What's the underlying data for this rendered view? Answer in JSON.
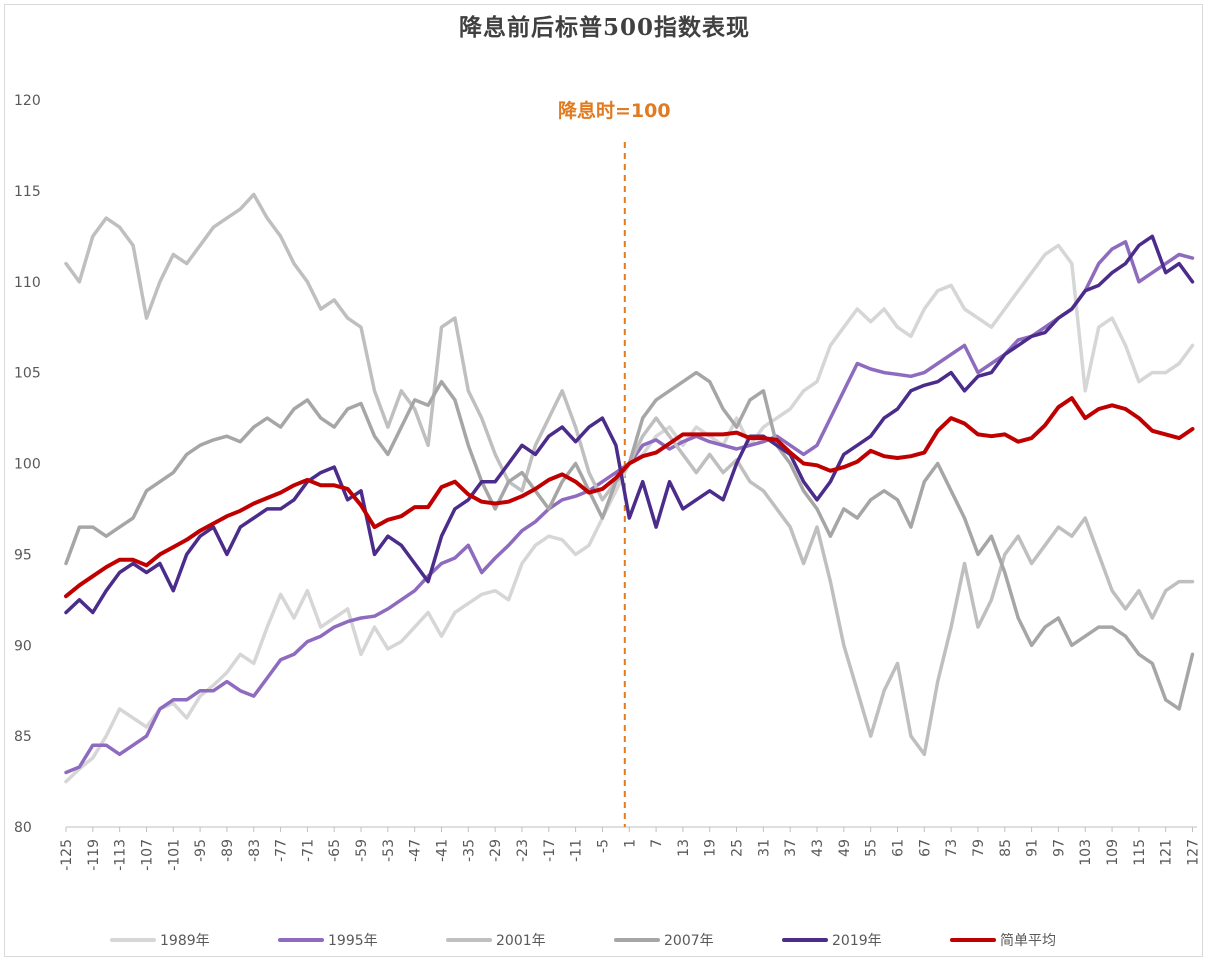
{
  "chart_data": {
    "type": "line",
    "title": "降息前后标普500指数表现",
    "annotation": "降息时=100",
    "annotation_color": "#e07b22",
    "xlabel": "",
    "ylabel": "",
    "x_range": [
      -125,
      128
    ],
    "ylim": [
      80,
      120
    ],
    "y_ticks": [
      80,
      85,
      90,
      95,
      100,
      105,
      110,
      115,
      120
    ],
    "x_tick_labels": [
      -125,
      -119,
      -113,
      -107,
      -101,
      -95,
      -89,
      -83,
      -77,
      -71,
      -65,
      -59,
      -53,
      -47,
      -41,
      -35,
      -29,
      -23,
      -17,
      -11,
      -5,
      1,
      7,
      13,
      19,
      25,
      31,
      37,
      43,
      49,
      55,
      61,
      67,
      73,
      79,
      85,
      91,
      97,
      103,
      109,
      115,
      121,
      127
    ],
    "grid": false,
    "legend_position": "bottom",
    "series": [
      {
        "name": "1989年",
        "color": "#d6d6d6",
        "width": 3.5,
        "x": [
          -125,
          -122,
          -119,
          -116,
          -113,
          -110,
          -107,
          -104,
          -101,
          -98,
          -95,
          -92,
          -89,
          -86,
          -83,
          -80,
          -77,
          -74,
          -71,
          -68,
          -65,
          -62,
          -59,
          -56,
          -53,
          -50,
          -47,
          -44,
          -41,
          -38,
          -35,
          -32,
          -29,
          -26,
          -23,
          -20,
          -17,
          -14,
          -11,
          -8,
          -5,
          -2,
          1,
          4,
          7,
          10,
          13,
          16,
          19,
          22,
          25,
          28,
          31,
          34,
          37,
          40,
          43,
          46,
          49,
          52,
          55,
          58,
          61,
          64,
          67,
          70,
          73,
          76,
          79,
          82,
          85,
          88,
          91,
          94,
          97,
          100,
          103,
          106,
          109,
          112,
          115,
          118,
          121,
          124,
          127
        ],
        "values": [
          82.5,
          83.2,
          83.8,
          85.0,
          86.5,
          86.0,
          85.5,
          86.5,
          86.8,
          86.0,
          87.2,
          87.8,
          88.5,
          89.5,
          89.0,
          91.0,
          92.8,
          91.5,
          93.0,
          91.0,
          91.5,
          92.0,
          89.5,
          91.0,
          89.8,
          90.2,
          91.0,
          91.8,
          90.5,
          91.8,
          92.3,
          92.8,
          93.0,
          92.5,
          94.5,
          95.5,
          96.0,
          95.8,
          95.0,
          95.5,
          97.0,
          98.5,
          100.0,
          100.5,
          101.5,
          102.0,
          101.0,
          102.0,
          101.5,
          101.0,
          102.5,
          101.0,
          102.0,
          102.5,
          103.0,
          104.0,
          104.5,
          106.5,
          107.5,
          108.5,
          107.8,
          108.5,
          107.5,
          107.0,
          108.5,
          109.5,
          109.8,
          108.5,
          108.0,
          107.5,
          108.5,
          109.5,
          110.5,
          111.5,
          112.0,
          111.0,
          104.0,
          107.5,
          108.0,
          106.5,
          104.5,
          105.0,
          105.0,
          105.5,
          106.5
        ]
      },
      {
        "name": "1995年",
        "color": "#8e6bbf",
        "width": 3.5,
        "x": [
          -125,
          -122,
          -119,
          -116,
          -113,
          -110,
          -107,
          -104,
          -101,
          -98,
          -95,
          -92,
          -89,
          -86,
          -83,
          -80,
          -77,
          -74,
          -71,
          -68,
          -65,
          -62,
          -59,
          -56,
          -53,
          -50,
          -47,
          -44,
          -41,
          -38,
          -35,
          -32,
          -29,
          -26,
          -23,
          -20,
          -17,
          -14,
          -11,
          -8,
          -5,
          -2,
          1,
          4,
          7,
          10,
          13,
          16,
          19,
          22,
          25,
          28,
          31,
          34,
          37,
          40,
          43,
          46,
          49,
          52,
          55,
          58,
          61,
          64,
          67,
          70,
          73,
          76,
          79,
          82,
          85,
          88,
          91,
          94,
          97,
          100,
          103,
          106,
          109,
          112,
          115,
          118,
          121,
          124,
          127
        ],
        "values": [
          83.0,
          83.3,
          84.5,
          84.5,
          84.0,
          84.5,
          85.0,
          86.5,
          87.0,
          87.0,
          87.5,
          87.5,
          88.0,
          87.5,
          87.2,
          88.2,
          89.2,
          89.5,
          90.2,
          90.5,
          91.0,
          91.3,
          91.5,
          91.6,
          92.0,
          92.5,
          93.0,
          93.8,
          94.5,
          94.8,
          95.5,
          94.0,
          94.8,
          95.5,
          96.3,
          96.8,
          97.5,
          98.0,
          98.2,
          98.5,
          99.0,
          99.5,
          100.0,
          101.0,
          101.3,
          100.8,
          101.2,
          101.5,
          101.2,
          101.0,
          100.8,
          101.0,
          101.2,
          101.5,
          101.0,
          100.5,
          101.0,
          102.5,
          104.0,
          105.5,
          105.2,
          105.0,
          104.9,
          104.8,
          105.0,
          105.5,
          106.0,
          106.5,
          105.0,
          105.5,
          106.0,
          106.8,
          107.0,
          107.5,
          108.0,
          108.5,
          109.5,
          111.0,
          111.8,
          112.2,
          110.0,
          110.5,
          111.0,
          111.5,
          111.3
        ]
      },
      {
        "name": "2001年",
        "color": "#bfbfbf",
        "width": 3.5,
        "x": [
          -125,
          -122,
          -119,
          -116,
          -113,
          -110,
          -107,
          -104,
          -101,
          -98,
          -95,
          -92,
          -89,
          -86,
          -83,
          -80,
          -77,
          -74,
          -71,
          -68,
          -65,
          -62,
          -59,
          -56,
          -53,
          -50,
          -47,
          -44,
          -41,
          -38,
          -35,
          -32,
          -29,
          -26,
          -23,
          -20,
          -17,
          -14,
          -11,
          -8,
          -5,
          -2,
          1,
          4,
          7,
          10,
          13,
          16,
          19,
          22,
          25,
          28,
          31,
          34,
          37,
          40,
          43,
          46,
          49,
          52,
          55,
          58,
          61,
          64,
          67,
          70,
          73,
          76,
          79,
          82,
          85,
          88,
          91,
          94,
          97,
          100,
          103,
          106,
          109,
          112,
          115,
          118,
          121,
          124,
          127
        ],
        "values": [
          111.0,
          110.0,
          112.5,
          113.5,
          113.0,
          112.0,
          108.0,
          110.0,
          111.5,
          111.0,
          112.0,
          113.0,
          113.5,
          114.0,
          114.8,
          113.5,
          112.5,
          111.0,
          110.0,
          108.5,
          109.0,
          108.0,
          107.5,
          104.0,
          102.0,
          104.0,
          103.0,
          101.0,
          107.5,
          108.0,
          104.0,
          102.5,
          100.5,
          99.0,
          98.5,
          101.0,
          102.5,
          104.0,
          102.0,
          99.5,
          98.0,
          99.0,
          100.0,
          101.5,
          102.5,
          101.5,
          100.5,
          99.5,
          100.5,
          99.5,
          100.2,
          99.0,
          98.5,
          97.5,
          96.5,
          94.5,
          96.5,
          93.5,
          90.0,
          87.5,
          85.0,
          87.5,
          89.0,
          85.0,
          84.0,
          88.0,
          91.0,
          94.5,
          91.0,
          92.5,
          95.0,
          96.0,
          94.5,
          95.5,
          96.5,
          96.0,
          97.0,
          95.0,
          93.0,
          92.0,
          93.0,
          91.5,
          93.0,
          93.5,
          93.5
        ]
      },
      {
        "name": "2007年",
        "color": "#a6a6a6",
        "width": 3.5,
        "x": [
          -125,
          -122,
          -119,
          -116,
          -113,
          -110,
          -107,
          -104,
          -101,
          -98,
          -95,
          -92,
          -89,
          -86,
          -83,
          -80,
          -77,
          -74,
          -71,
          -68,
          -65,
          -62,
          -59,
          -56,
          -53,
          -50,
          -47,
          -44,
          -41,
          -38,
          -35,
          -32,
          -29,
          -26,
          -23,
          -20,
          -17,
          -14,
          -11,
          -8,
          -5,
          -2,
          1,
          4,
          7,
          10,
          13,
          16,
          19,
          22,
          25,
          28,
          31,
          34,
          37,
          40,
          43,
          46,
          49,
          52,
          55,
          58,
          61,
          64,
          67,
          70,
          73,
          76,
          79,
          82,
          85,
          88,
          91,
          94,
          97,
          100,
          103,
          106,
          109,
          112,
          115,
          118,
          121,
          124,
          127
        ],
        "values": [
          94.5,
          96.5,
          96.5,
          96.0,
          96.5,
          97.0,
          98.5,
          99.0,
          99.5,
          100.5,
          101.0,
          101.3,
          101.5,
          101.2,
          102.0,
          102.5,
          102.0,
          103.0,
          103.5,
          102.5,
          102.0,
          103.0,
          103.3,
          101.5,
          100.5,
          102.0,
          103.5,
          103.2,
          104.5,
          103.5,
          101.0,
          99.0,
          97.5,
          99.0,
          99.5,
          98.5,
          97.5,
          99.0,
          100.0,
          98.5,
          97.0,
          99.0,
          100.0,
          102.5,
          103.5,
          104.0,
          104.5,
          105.0,
          104.5,
          103.0,
          102.0,
          103.5,
          104.0,
          101.0,
          100.0,
          98.5,
          97.5,
          96.0,
          97.5,
          97.0,
          98.0,
          98.5,
          98.0,
          96.5,
          99.0,
          100.0,
          98.5,
          97.0,
          95.0,
          96.0,
          94.0,
          91.5,
          90.0,
          91.0,
          91.5,
          90.0,
          90.5,
          91.0,
          91.0,
          90.5,
          89.5,
          89.0,
          87.0,
          86.5,
          89.5
        ]
      },
      {
        "name": "2019年",
        "color": "#4b2c8a",
        "width": 3.5,
        "x": [
          -125,
          -122,
          -119,
          -116,
          -113,
          -110,
          -107,
          -104,
          -101,
          -98,
          -95,
          -92,
          -89,
          -86,
          -83,
          -80,
          -77,
          -74,
          -71,
          -68,
          -65,
          -62,
          -59,
          -56,
          -53,
          -50,
          -47,
          -44,
          -41,
          -38,
          -35,
          -32,
          -29,
          -26,
          -23,
          -20,
          -17,
          -14,
          -11,
          -8,
          -5,
          -2,
          1,
          4,
          7,
          10,
          13,
          16,
          19,
          22,
          25,
          28,
          31,
          34,
          37,
          40,
          43,
          46,
          49,
          52,
          55,
          58,
          61,
          64,
          67,
          70,
          73,
          76,
          79,
          82,
          85,
          88,
          91,
          94,
          97,
          100,
          103,
          106,
          109,
          112,
          115,
          118,
          121,
          124,
          127
        ],
        "values": [
          91.8,
          92.5,
          91.8,
          93.0,
          94.0,
          94.5,
          94.0,
          94.5,
          93.0,
          95.0,
          96.0,
          96.5,
          95.0,
          96.5,
          97.0,
          97.5,
          97.5,
          98.0,
          99.0,
          99.5,
          99.8,
          98.0,
          98.5,
          95.0,
          96.0,
          95.5,
          94.5,
          93.5,
          96.0,
          97.5,
          98.0,
          99.0,
          99.0,
          100.0,
          101.0,
          100.5,
          101.5,
          102.0,
          101.2,
          102.0,
          102.5,
          101.0,
          97.0,
          99.0,
          96.5,
          99.0,
          97.5,
          98.0,
          98.5,
          98.0,
          100.0,
          101.5,
          101.5,
          101.0,
          100.5,
          99.0,
          98.0,
          99.0,
          100.5,
          101.0,
          101.5,
          102.5,
          103.0,
          104.0,
          104.3,
          104.5,
          105.0,
          104.0,
          104.8,
          105.0,
          106.0,
          106.5,
          107.0,
          107.2,
          108.0,
          108.5,
          109.5,
          109.8,
          110.5,
          111.0,
          112.0,
          112.5,
          110.5,
          111.0,
          110.0
        ]
      },
      {
        "name": "简单平均",
        "color": "#c00000",
        "width": 4,
        "x": [
          -125,
          -122,
          -119,
          -116,
          -113,
          -110,
          -107,
          -104,
          -101,
          -98,
          -95,
          -92,
          -89,
          -86,
          -83,
          -80,
          -77,
          -74,
          -71,
          -68,
          -65,
          -62,
          -59,
          -56,
          -53,
          -50,
          -47,
          -44,
          -41,
          -38,
          -35,
          -32,
          -29,
          -26,
          -23,
          -20,
          -17,
          -14,
          -11,
          -8,
          -5,
          -2,
          1,
          4,
          7,
          10,
          13,
          16,
          19,
          22,
          25,
          28,
          31,
          34,
          37,
          40,
          43,
          46,
          49,
          52,
          55,
          58,
          61,
          64,
          67,
          70,
          73,
          76,
          79,
          82,
          85,
          88,
          91,
          94,
          97,
          100,
          103,
          106,
          109,
          112,
          115,
          118,
          121,
          124,
          127
        ],
        "values": [
          92.7,
          93.3,
          93.8,
          94.3,
          94.7,
          94.7,
          94.4,
          95.0,
          95.4,
          95.8,
          96.3,
          96.7,
          97.1,
          97.4,
          97.8,
          98.1,
          98.4,
          98.8,
          99.1,
          98.8,
          98.8,
          98.6,
          97.7,
          96.5,
          96.9,
          97.1,
          97.6,
          97.6,
          98.7,
          99.0,
          98.3,
          97.9,
          97.8,
          97.9,
          98.2,
          98.6,
          99.1,
          99.4,
          99.0,
          98.4,
          98.6,
          99.2,
          100.0,
          100.4,
          100.6,
          101.1,
          101.6,
          101.6,
          101.6,
          101.6,
          101.7,
          101.4,
          101.4,
          101.3,
          100.6,
          100.0,
          99.9,
          99.6,
          99.8,
          100.1,
          100.7,
          100.4,
          100.3,
          100.4,
          100.6,
          101.8,
          102.5,
          102.2,
          101.6,
          101.5,
          101.6,
          101.2,
          101.4,
          102.1,
          103.1,
          103.6,
          102.5,
          103.0,
          103.2,
          103.0,
          102.5,
          101.8,
          101.6,
          101.4,
          101.9
        ]
      }
    ]
  }
}
